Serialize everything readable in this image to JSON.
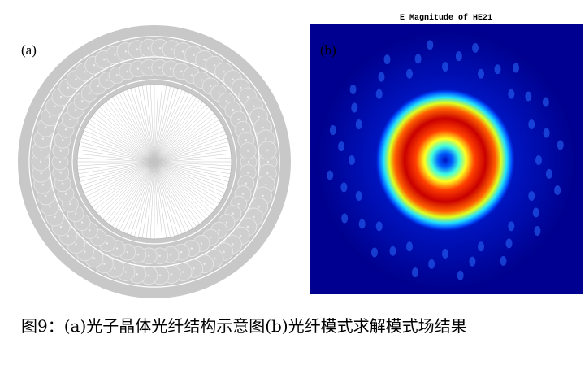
{
  "panel_a": {
    "label": "(a)"
  },
  "panel_b": {
    "label": "(b)",
    "title": "E Magnitude of HE21"
  },
  "caption": "图9：(a)光子晶体光纤结构示意图(b)光纤模式求解模式场结果"
}
